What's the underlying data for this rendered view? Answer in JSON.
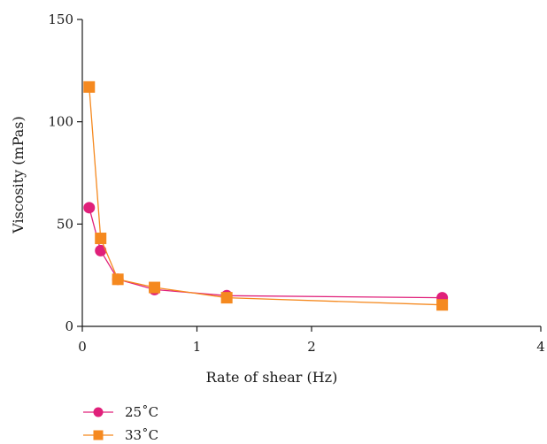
{
  "chart_data": {
    "type": "line",
    "title": "",
    "xlabel": "Rate of shear (Hz)",
    "ylabel": "Viscosity (mPas)",
    "xlim": [
      0,
      4
    ],
    "ylim": [
      0,
      150
    ],
    "x_ticks": [
      "0",
      "1",
      "2",
      "4"
    ],
    "x_tick_values": [
      0,
      1,
      2,
      4
    ],
    "y_ticks": [
      "0",
      "50",
      "100",
      "150"
    ],
    "y_tick_values": [
      0,
      50,
      100,
      150
    ],
    "grid": false,
    "legend_position": "bottom-left",
    "series": [
      {
        "name": "25˚C",
        "color": "#e0207a",
        "marker": "circle",
        "x": [
          0.06,
          0.16,
          0.31,
          0.63,
          1.26,
          3.14
        ],
        "y": [
          58,
          37,
          23,
          18,
          15,
          14
        ]
      },
      {
        "name": "33˚C",
        "color": "#f5891f",
        "marker": "square",
        "x": [
          0.06,
          0.16,
          0.31,
          0.63,
          1.26,
          3.14
        ],
        "y": [
          117,
          43,
          23,
          19,
          14,
          10.5
        ]
      }
    ]
  }
}
